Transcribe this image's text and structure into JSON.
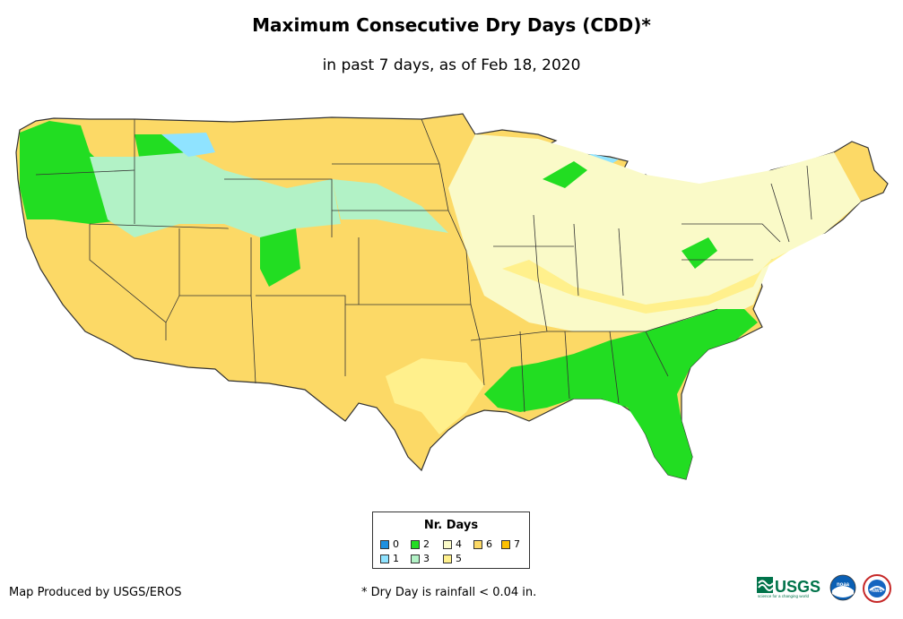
{
  "title": "Maximum Consecutive Dry Days (CDD)*",
  "subtitle": "in past 7 days, as of Feb 18, 2020",
  "legend": {
    "title": "Nr. Days",
    "items": [
      {
        "label": "0",
        "color": "#1E90E0"
      },
      {
        "label": "1",
        "color": "#8FE3FF"
      },
      {
        "label": "2",
        "color": "#22DD22"
      },
      {
        "label": "3",
        "color": "#B2F2C6"
      },
      {
        "label": "4",
        "color": "#FAFAC8"
      },
      {
        "label": "5",
        "color": "#FFF08C"
      },
      {
        "label": "6",
        "color": "#FCD966"
      },
      {
        "label": "7",
        "color": "#FCC000"
      }
    ]
  },
  "credit": "Map Produced by USGS/EROS",
  "footnote": "* Dry Day is rainfall < 0.04 in.",
  "logos": {
    "usgs": "USGS",
    "usgs_tagline": "science for a changing world",
    "noaa": "noaa",
    "nws": "NWS"
  }
}
